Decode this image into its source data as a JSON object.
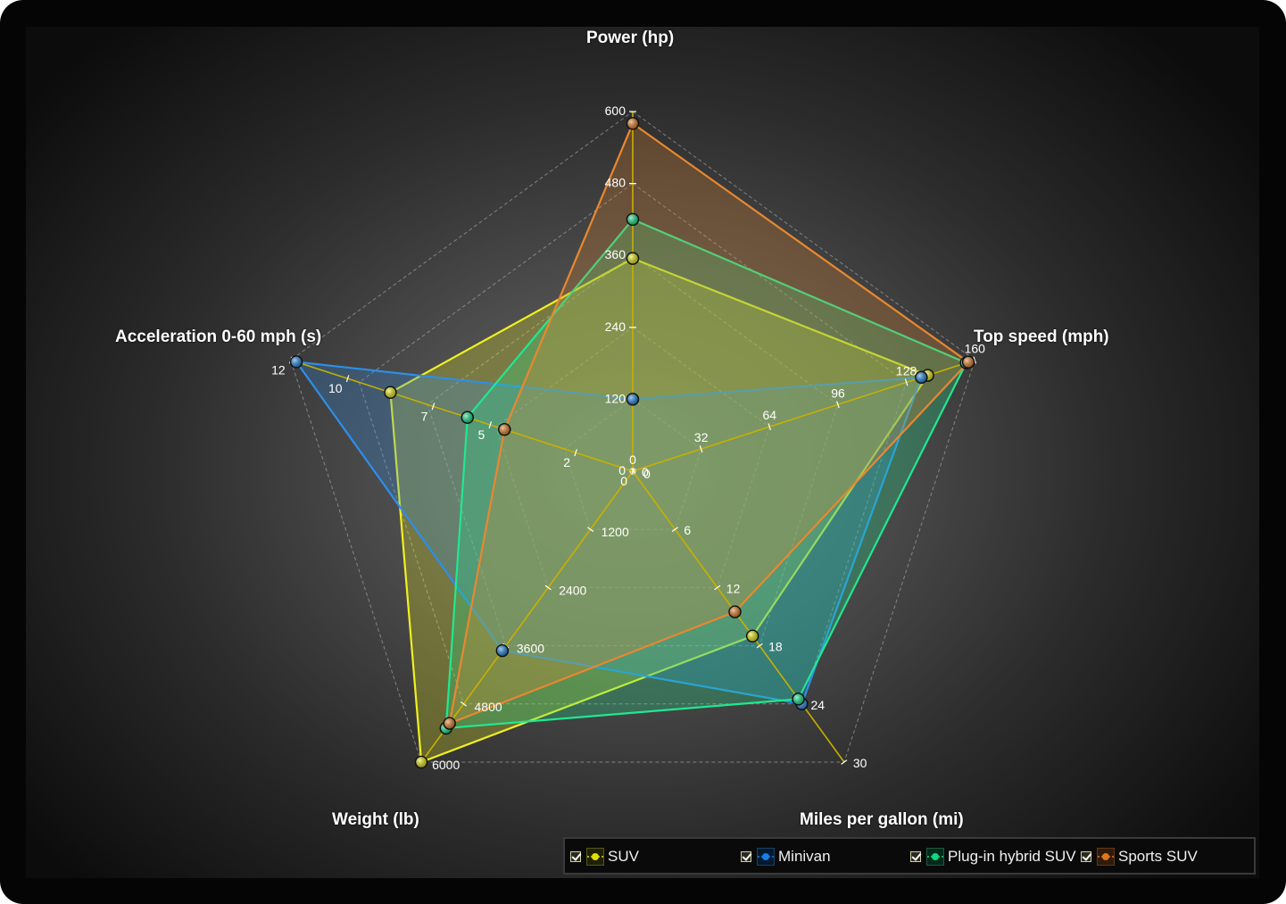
{
  "chart_data": {
    "type": "radar",
    "axes": [
      {
        "label": "Power (hp)",
        "min": 0,
        "max": 600,
        "ticks": [
          0,
          120,
          240,
          360,
          480,
          600
        ]
      },
      {
        "label": "Top speed (mph)",
        "min": 0,
        "max": 160,
        "ticks": [
          0,
          32,
          64,
          96,
          128,
          160
        ]
      },
      {
        "label": "Miles per gallon (mi)",
        "min": 0,
        "max": 30,
        "ticks": [
          0,
          6,
          12,
          18,
          24,
          30
        ]
      },
      {
        "label": "Weight (lb)",
        "min": 0,
        "max": 6000,
        "ticks": [
          0,
          1200,
          2400,
          3600,
          4800,
          6000
        ]
      },
      {
        "label": "Acceleration 0-60 mph (s)",
        "min": 0,
        "max": 12,
        "ticks": [
          0,
          2,
          5,
          7,
          10,
          12
        ]
      }
    ],
    "series": [
      {
        "name": "SUV",
        "color": "#f0f020",
        "values": [
          355,
          138,
          17,
          6000,
          8.5
        ]
      },
      {
        "name": "Minivan",
        "color": "#2e8ee8",
        "values": [
          120,
          135,
          24,
          3700,
          11.8
        ]
      },
      {
        "name": "Plug-in hybrid SUV",
        "color": "#20e890",
        "values": [
          420,
          156,
          23.5,
          5300,
          5.8
        ]
      },
      {
        "name": "Sports SUV",
        "color": "#e88830",
        "values": [
          580,
          157,
          14.5,
          5200,
          4.5
        ]
      }
    ],
    "legend_position": "bottom-right"
  },
  "legend": {
    "items": [
      {
        "label": "SUV",
        "color": "#e0e000"
      },
      {
        "label": "Minivan",
        "color": "#1a7ce8"
      },
      {
        "label": "Plug-in hybrid SUV",
        "color": "#10d880"
      },
      {
        "label": "Sports SUV",
        "color": "#e0761c"
      }
    ]
  }
}
